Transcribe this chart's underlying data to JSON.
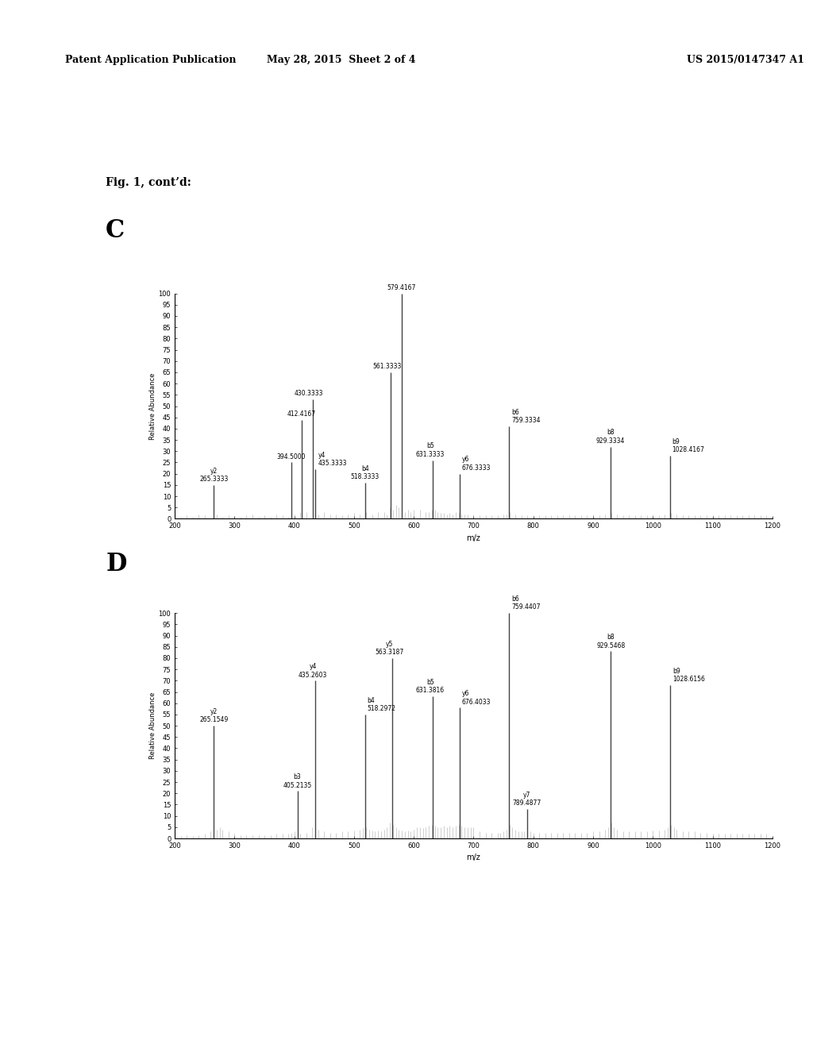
{
  "header_left": "Patent Application Publication",
  "header_center": "May 28, 2015  Sheet 2 of 4",
  "header_right": "US 2015/0147347 A1",
  "fig_label": "Fig. 1, cont’d:",
  "panel_C_label": "C",
  "panel_D_label": "D",
  "panel_C": {
    "xlabel": "m/z",
    "ylabel": "Relative Abundance",
    "xlim": [
      200,
      1200
    ],
    "ylim": [
      0,
      100
    ],
    "yticks": [
      0,
      5,
      10,
      15,
      20,
      25,
      30,
      35,
      40,
      45,
      50,
      55,
      60,
      65,
      70,
      75,
      80,
      85,
      90,
      95,
      100
    ],
    "peaks": [
      {
        "mz": 265.3333,
        "intensity": 15,
        "label": "y2\n265.3333"
      },
      {
        "mz": 394.5,
        "intensity": 25,
        "label": "394.5000"
      },
      {
        "mz": 412.4167,
        "intensity": 44,
        "label": "412.4167"
      },
      {
        "mz": 430.3333,
        "intensity": 53,
        "label": "430.3333"
      },
      {
        "mz": 435.3333,
        "intensity": 22,
        "label": "y4\n435.3333"
      },
      {
        "mz": 518.3333,
        "intensity": 16,
        "label": "b4\n518.3333"
      },
      {
        "mz": 561.3333,
        "intensity": 65,
        "label": "561.3333"
      },
      {
        "mz": 579.4167,
        "intensity": 100,
        "label": "579.4167"
      },
      {
        "mz": 631.3333,
        "intensity": 26,
        "label": "b5\n631.3333"
      },
      {
        "mz": 676.3333,
        "intensity": 20,
        "label": "y6\n676.3333"
      },
      {
        "mz": 759.3334,
        "intensity": 41,
        "label": "b6\n759.3334"
      },
      {
        "mz": 929.3334,
        "intensity": 32,
        "label": "b8\n929.3334"
      },
      {
        "mz": 1028.4167,
        "intensity": 28,
        "label": "b9\n1028.4167"
      }
    ],
    "noise_peaks": [
      [
        210,
        1
      ],
      [
        220,
        1.5
      ],
      [
        230,
        1
      ],
      [
        240,
        2
      ],
      [
        250,
        1.5
      ],
      [
        270,
        2
      ],
      [
        280,
        1
      ],
      [
        290,
        1.5
      ],
      [
        300,
        1
      ],
      [
        310,
        1
      ],
      [
        320,
        1.5
      ],
      [
        330,
        2
      ],
      [
        340,
        1
      ],
      [
        350,
        1.5
      ],
      [
        360,
        1
      ],
      [
        370,
        2
      ],
      [
        380,
        1.5
      ],
      [
        390,
        1
      ],
      [
        400,
        2
      ],
      [
        410,
        3
      ],
      [
        420,
        3
      ],
      [
        440,
        2
      ],
      [
        450,
        3
      ],
      [
        460,
        2
      ],
      [
        470,
        2
      ],
      [
        480,
        1.5
      ],
      [
        490,
        2
      ],
      [
        500,
        2.5
      ],
      [
        510,
        2
      ],
      [
        520,
        3
      ],
      [
        530,
        2
      ],
      [
        540,
        3
      ],
      [
        550,
        3
      ],
      [
        555,
        2
      ],
      [
        560,
        5
      ],
      [
        565,
        4
      ],
      [
        570,
        6
      ],
      [
        575,
        5
      ],
      [
        580,
        4
      ],
      [
        585,
        3
      ],
      [
        590,
        4
      ],
      [
        595,
        3
      ],
      [
        600,
        4
      ],
      [
        610,
        4
      ],
      [
        620,
        3
      ],
      [
        625,
        3
      ],
      [
        630,
        4
      ],
      [
        635,
        4
      ],
      [
        640,
        3
      ],
      [
        645,
        2.5
      ],
      [
        650,
        2.5
      ],
      [
        655,
        2
      ],
      [
        660,
        2.5
      ],
      [
        665,
        2
      ],
      [
        670,
        3
      ],
      [
        675,
        2.5
      ],
      [
        680,
        2
      ],
      [
        685,
        2
      ],
      [
        690,
        2
      ],
      [
        700,
        2
      ],
      [
        710,
        1.5
      ],
      [
        720,
        1.5
      ],
      [
        730,
        1.5
      ],
      [
        740,
        1.5
      ],
      [
        750,
        2
      ],
      [
        755,
        2
      ],
      [
        760,
        3
      ],
      [
        770,
        2
      ],
      [
        780,
        1.5
      ],
      [
        790,
        1.5
      ],
      [
        800,
        1.5
      ],
      [
        810,
        1.5
      ],
      [
        820,
        1.5
      ],
      [
        830,
        1.5
      ],
      [
        840,
        1.5
      ],
      [
        850,
        1.5
      ],
      [
        860,
        1.5
      ],
      [
        870,
        1.5
      ],
      [
        880,
        1.5
      ],
      [
        890,
        1.5
      ],
      [
        900,
        2
      ],
      [
        910,
        1.5
      ],
      [
        920,
        2
      ],
      [
        930,
        2.5
      ],
      [
        940,
        2
      ],
      [
        950,
        1.5
      ],
      [
        960,
        1.5
      ],
      [
        970,
        1.5
      ],
      [
        980,
        1.5
      ],
      [
        990,
        1.5
      ],
      [
        1000,
        2
      ],
      [
        1010,
        1.5
      ],
      [
        1020,
        2
      ],
      [
        1030,
        2.5
      ],
      [
        1040,
        2
      ],
      [
        1050,
        1.5
      ],
      [
        1060,
        1.5
      ],
      [
        1070,
        1.5
      ],
      [
        1080,
        1.5
      ],
      [
        1090,
        1.5
      ],
      [
        1100,
        1.5
      ],
      [
        1110,
        1.5
      ],
      [
        1120,
        1.5
      ],
      [
        1130,
        1.5
      ],
      [
        1140,
        1.5
      ],
      [
        1150,
        1.5
      ],
      [
        1160,
        1.5
      ],
      [
        1170,
        1.5
      ],
      [
        1180,
        1.5
      ],
      [
        1190,
        1.5
      ]
    ]
  },
  "panel_D": {
    "xlabel": "m/z",
    "ylabel": "Relative Abundance",
    "xlim": [
      200,
      1200
    ],
    "ylim": [
      0,
      100
    ],
    "yticks": [
      0,
      5,
      10,
      15,
      20,
      25,
      30,
      35,
      40,
      45,
      50,
      55,
      60,
      65,
      70,
      75,
      80,
      85,
      90,
      95,
      100
    ],
    "peaks": [
      {
        "mz": 265.1549,
        "intensity": 50,
        "label": "y2\n265.1549"
      },
      {
        "mz": 405.2135,
        "intensity": 21,
        "label": "b3\n405.2135"
      },
      {
        "mz": 435.2603,
        "intensity": 70,
        "label": "y4\n435.2603"
      },
      {
        "mz": 518.2972,
        "intensity": 55,
        "label": "b4\n518.2972"
      },
      {
        "mz": 563.3187,
        "intensity": 80,
        "label": "y5\n563.3187"
      },
      {
        "mz": 631.3816,
        "intensity": 63,
        "label": "b5\n631.3816"
      },
      {
        "mz": 676.4033,
        "intensity": 58,
        "label": "y6\n676.4033"
      },
      {
        "mz": 759.4407,
        "intensity": 100,
        "label": "b6\n759.4407"
      },
      {
        "mz": 789.4877,
        "intensity": 13,
        "label": "y7\n789.4877"
      },
      {
        "mz": 929.5468,
        "intensity": 83,
        "label": "b8\n929.5468"
      },
      {
        "mz": 1028.6156,
        "intensity": 68,
        "label": "b9\n1028.6156"
      }
    ],
    "noise_peaks": [
      [
        210,
        1
      ],
      [
        220,
        1.5
      ],
      [
        230,
        1
      ],
      [
        240,
        1.5
      ],
      [
        250,
        2
      ],
      [
        260,
        3
      ],
      [
        270,
        4
      ],
      [
        275,
        5
      ],
      [
        280,
        4
      ],
      [
        290,
        3
      ],
      [
        300,
        2
      ],
      [
        310,
        1.5
      ],
      [
        320,
        1.5
      ],
      [
        330,
        1.5
      ],
      [
        340,
        1.5
      ],
      [
        350,
        1.5
      ],
      [
        360,
        1.5
      ],
      [
        370,
        2
      ],
      [
        380,
        2
      ],
      [
        390,
        2
      ],
      [
        395,
        2.5
      ],
      [
        400,
        3
      ],
      [
        410,
        2
      ],
      [
        420,
        2.5
      ],
      [
        430,
        5
      ],
      [
        440,
        4
      ],
      [
        450,
        3
      ],
      [
        460,
        2.5
      ],
      [
        470,
        2.5
      ],
      [
        480,
        3
      ],
      [
        490,
        3
      ],
      [
        500,
        3.5
      ],
      [
        510,
        4
      ],
      [
        515,
        4.5
      ],
      [
        520,
        5
      ],
      [
        525,
        4
      ],
      [
        530,
        3.5
      ],
      [
        535,
        3
      ],
      [
        540,
        3.5
      ],
      [
        545,
        3
      ],
      [
        550,
        4
      ],
      [
        555,
        5
      ],
      [
        560,
        7
      ],
      [
        565,
        6
      ],
      [
        570,
        5
      ],
      [
        575,
        4
      ],
      [
        580,
        3.5
      ],
      [
        585,
        3
      ],
      [
        590,
        3.5
      ],
      [
        595,
        3
      ],
      [
        600,
        4
      ],
      [
        605,
        5
      ],
      [
        610,
        5
      ],
      [
        615,
        4.5
      ],
      [
        620,
        5
      ],
      [
        625,
        5.5
      ],
      [
        630,
        6
      ],
      [
        635,
        5.5
      ],
      [
        640,
        5
      ],
      [
        645,
        5
      ],
      [
        650,
        5.5
      ],
      [
        655,
        5
      ],
      [
        660,
        5.5
      ],
      [
        665,
        5
      ],
      [
        670,
        5.5
      ],
      [
        675,
        6
      ],
      [
        680,
        5.5
      ],
      [
        685,
        5
      ],
      [
        690,
        5
      ],
      [
        695,
        5
      ],
      [
        700,
        5
      ],
      [
        710,
        3
      ],
      [
        720,
        2.5
      ],
      [
        730,
        2.5
      ],
      [
        740,
        2.5
      ],
      [
        745,
        2.5
      ],
      [
        750,
        3
      ],
      [
        755,
        4
      ],
      [
        760,
        6
      ],
      [
        765,
        5
      ],
      [
        770,
        4
      ],
      [
        775,
        3
      ],
      [
        780,
        3
      ],
      [
        785,
        3
      ],
      [
        790,
        3.5
      ],
      [
        795,
        3
      ],
      [
        800,
        2.5
      ],
      [
        810,
        2.5
      ],
      [
        820,
        2.5
      ],
      [
        830,
        2.5
      ],
      [
        840,
        2.5
      ],
      [
        850,
        2.5
      ],
      [
        860,
        2.5
      ],
      [
        870,
        2.5
      ],
      [
        880,
        2.5
      ],
      [
        890,
        2.5
      ],
      [
        900,
        3
      ],
      [
        910,
        3
      ],
      [
        920,
        4
      ],
      [
        925,
        5
      ],
      [
        930,
        7
      ],
      [
        935,
        5
      ],
      [
        940,
        4
      ],
      [
        950,
        3
      ],
      [
        960,
        3
      ],
      [
        970,
        3
      ],
      [
        980,
        3
      ],
      [
        990,
        3
      ],
      [
        1000,
        3.5
      ],
      [
        1010,
        3.5
      ],
      [
        1020,
        4
      ],
      [
        1025,
        5
      ],
      [
        1030,
        6
      ],
      [
        1035,
        5
      ],
      [
        1040,
        4
      ],
      [
        1050,
        3
      ],
      [
        1060,
        3
      ],
      [
        1070,
        3
      ],
      [
        1080,
        2.5
      ],
      [
        1090,
        2.5
      ],
      [
        1100,
        2
      ],
      [
        1110,
        2
      ],
      [
        1120,
        2
      ],
      [
        1130,
        2
      ],
      [
        1140,
        2
      ],
      [
        1150,
        2
      ],
      [
        1160,
        2
      ],
      [
        1170,
        2
      ],
      [
        1180,
        2
      ],
      [
        1190,
        2
      ]
    ]
  }
}
